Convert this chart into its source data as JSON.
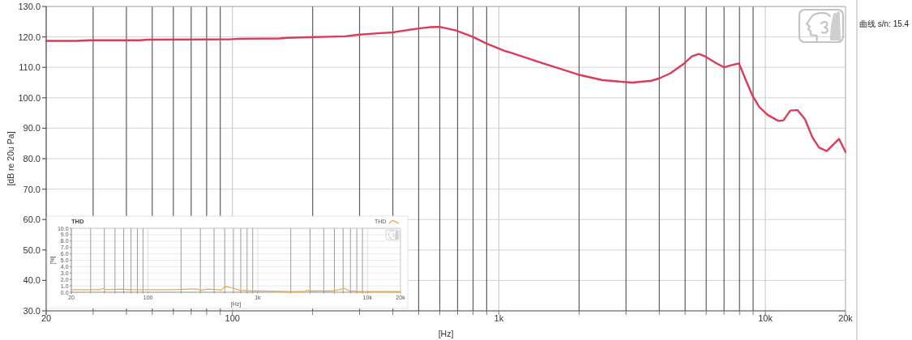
{
  "chart_data": [
    {
      "type": "line",
      "xlabel": "[Hz]",
      "ylabel": "[dB re 20u Pa]",
      "annotations": [
        "曲线 s/n: 15.4"
      ],
      "log": "x",
      "grid": true,
      "xlim": [
        20,
        20000
      ],
      "ylim": [
        30,
        130
      ],
      "xticks": [
        {
          "value": 20,
          "label": "20"
        },
        {
          "value": 30,
          "label": null
        },
        {
          "value": 40,
          "label": null
        },
        {
          "value": 50,
          "label": null
        },
        {
          "value": 60,
          "label": null
        },
        {
          "value": 70,
          "label": null
        },
        {
          "value": 80,
          "label": null
        },
        {
          "value": 90,
          "label": null
        },
        {
          "value": 100,
          "label": "100"
        },
        {
          "value": 200,
          "label": null
        },
        {
          "value": 300,
          "label": null
        },
        {
          "value": 400,
          "label": null
        },
        {
          "value": 500,
          "label": null
        },
        {
          "value": 600,
          "label": null
        },
        {
          "value": 700,
          "label": null
        },
        {
          "value": 800,
          "label": null
        },
        {
          "value": 900,
          "label": null
        },
        {
          "value": 1000,
          "label": "1k"
        },
        {
          "value": 2000,
          "label": null
        },
        {
          "value": 3000,
          "label": null
        },
        {
          "value": 4000,
          "label": null
        },
        {
          "value": 5000,
          "label": null
        },
        {
          "value": 6000,
          "label": null
        },
        {
          "value": 7000,
          "label": null
        },
        {
          "value": 8000,
          "label": null
        },
        {
          "value": 9000,
          "label": null
        },
        {
          "value": 10000,
          "label": "10k"
        },
        {
          "value": 20000,
          "label": "20k"
        }
      ],
      "yticks": [
        {
          "value": 30,
          "label": "30.0"
        },
        {
          "value": 40,
          "label": "40.0"
        },
        {
          "value": 50,
          "label": "50.0"
        },
        {
          "value": 60,
          "label": "60.0"
        },
        {
          "value": 70,
          "label": "70.0"
        },
        {
          "value": 80,
          "label": "80.0"
        },
        {
          "value": 90,
          "label": "90.0"
        },
        {
          "value": 100,
          "label": "100.0"
        },
        {
          "value": 110,
          "label": "110.0"
        },
        {
          "value": 120,
          "label": "120.0"
        },
        {
          "value": 130,
          "label": "130.0"
        }
      ],
      "series": [
        {
          "color": "#dc3c5a",
          "x": [
            20,
            26,
            29,
            45,
            48,
            98,
            105,
            150,
            160,
            190,
            265,
            295,
            350,
            400,
            420,
            500,
            550,
            600,
            690,
            800,
            900,
            1060,
            1110,
            1430,
            1990,
            2450,
            2950,
            3170,
            3730,
            4000,
            4390,
            4930,
            5300,
            5620,
            5950,
            6540,
            7010,
            7430,
            7970,
            8450,
            8950,
            9500,
            10200,
            11200,
            11700,
            12400,
            13200,
            14100,
            15000,
            15900,
            17000,
            18900,
            20000
          ],
          "values": [
            118.7,
            118.7,
            118.9,
            118.9,
            119.1,
            119.2,
            119.4,
            119.5,
            119.7,
            119.9,
            120.2,
            120.7,
            121.2,
            121.5,
            121.8,
            122.8,
            123.2,
            123.3,
            122.1,
            120.0,
            117.8,
            115.3,
            114.8,
            111.6,
            107.6,
            105.8,
            105.2,
            105.0,
            105.6,
            106.4,
            108.0,
            111.1,
            113.6,
            114.4,
            113.6,
            111.4,
            110.0,
            110.7,
            111.3,
            105.8,
            100.7,
            96.9,
            94.4,
            92.4,
            92.6,
            95.8,
            96.0,
            92.9,
            87.1,
            83.7,
            82.5,
            86.5,
            82.2
          ]
        }
      ]
    },
    {
      "type": "line",
      "title": "THD",
      "xlabel": "[Hz]",
      "ylabel": "[%]",
      "log": "x",
      "grid": true,
      "legend": "top right",
      "xlim": [
        20,
        20000
      ],
      "ylim": [
        0,
        10
      ],
      "xticks": [
        {
          "value": 20,
          "label": "20"
        },
        {
          "value": 30,
          "label": null
        },
        {
          "value": 40,
          "label": null
        },
        {
          "value": 50,
          "label": null
        },
        {
          "value": 60,
          "label": null
        },
        {
          "value": 70,
          "label": null
        },
        {
          "value": 80,
          "label": null
        },
        {
          "value": 90,
          "label": null
        },
        {
          "value": 100,
          "label": "100"
        },
        {
          "value": 200,
          "label": null
        },
        {
          "value": 300,
          "label": null
        },
        {
          "value": 400,
          "label": null
        },
        {
          "value": 500,
          "label": null
        },
        {
          "value": 600,
          "label": null
        },
        {
          "value": 700,
          "label": null
        },
        {
          "value": 800,
          "label": null
        },
        {
          "value": 900,
          "label": null
        },
        {
          "value": 1000,
          "label": "1k"
        },
        {
          "value": 2000,
          "label": null
        },
        {
          "value": 3000,
          "label": null
        },
        {
          "value": 4000,
          "label": null
        },
        {
          "value": 5000,
          "label": null
        },
        {
          "value": 6000,
          "label": null
        },
        {
          "value": 7000,
          "label": null
        },
        {
          "value": 8000,
          "label": null
        },
        {
          "value": 9000,
          "label": null
        },
        {
          "value": 10000,
          "label": "10k"
        },
        {
          "value": 20000,
          "label": "20k"
        }
      ],
      "yticks": [
        {
          "value": 0,
          "label": "0.0"
        },
        {
          "value": 1,
          "label": "1.0"
        },
        {
          "value": 2,
          "label": "2.0"
        },
        {
          "value": 3,
          "label": "3.0"
        },
        {
          "value": 4,
          "label": "4.0"
        },
        {
          "value": 5,
          "label": "5.0"
        },
        {
          "value": 6,
          "label": "6.0"
        },
        {
          "value": 7,
          "label": "7.0"
        },
        {
          "value": 8,
          "label": "8.0"
        },
        {
          "value": 9,
          "label": "9.0"
        },
        {
          "value": 10,
          "label": "10.0"
        }
      ],
      "series": [
        {
          "name": "THD",
          "color": "#e8a848",
          "x": [
            20,
            37,
            39,
            41,
            60,
            64,
            177,
            235,
            279,
            303,
            349,
            438,
            462,
            503,
            580,
            687,
            910,
            1080,
            1890,
            2660,
            2810,
            3060,
            4670,
            5530,
            6190,
            6930,
            8200,
            20000
          ],
          "values": [
            0.4,
            0.4,
            0.6,
            0.4,
            0.5,
            0.4,
            0.4,
            0.5,
            0.5,
            0.3,
            0.5,
            0.4,
            0.3,
            0.9,
            0.7,
            0.3,
            0.2,
            0.2,
            0.1,
            0.1,
            0.3,
            0.2,
            0.2,
            0.4,
            0.6,
            0.2,
            0.1,
            0.1
          ]
        }
      ]
    }
  ]
}
